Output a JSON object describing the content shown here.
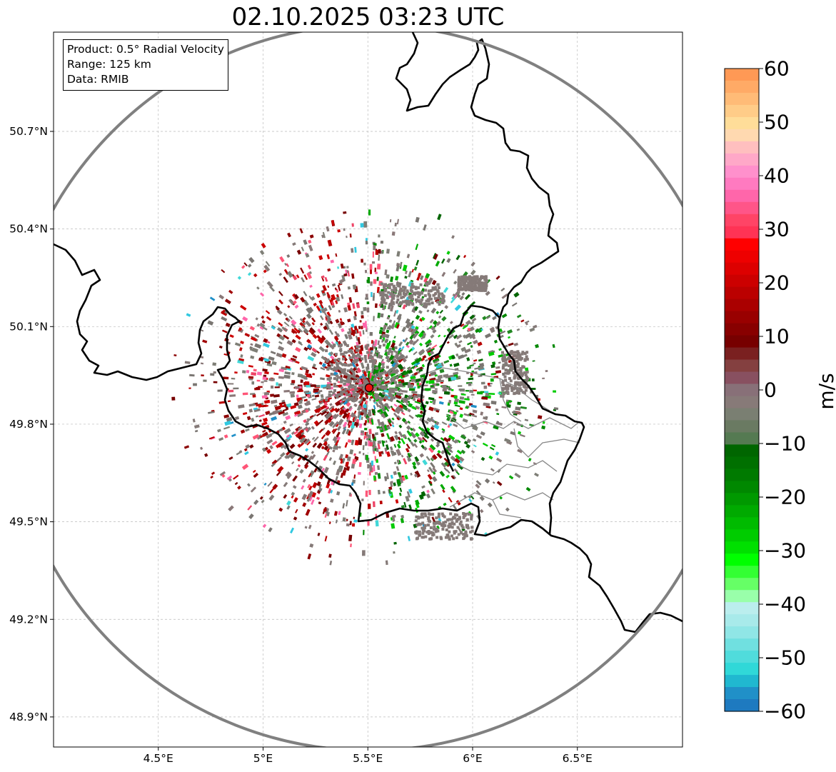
{
  "title": "02.10.2025 03:23 UTC",
  "infobox": {
    "product": "Product: 0.5° Radial Velocity",
    "range": "Range: 125 km",
    "data": "Data: RMIB"
  },
  "axes": {
    "lat_labels": [
      "50.7°N",
      "50.4°N",
      "50.1°N",
      "49.8°N",
      "49.5°N",
      "49.2°N",
      "48.9°N"
    ],
    "lat_values": [
      50.7,
      50.4,
      50.1,
      49.8,
      49.5,
      49.2,
      48.9
    ],
    "lon_labels": [
      "4.5°E",
      "5°E",
      "5.5°E",
      "6°E",
      "6.5°E"
    ],
    "lon_values": [
      4.5,
      5.0,
      5.5,
      6.0,
      6.5
    ],
    "lon_range": [
      4.0,
      7.0
    ],
    "lat_range": [
      48.8,
      50.98
    ]
  },
  "radar_site": {
    "lon": 5.505,
    "lat": 49.914
  },
  "colorbar": {
    "label": "m/s",
    "ticks": [
      "60",
      "50",
      "40",
      "30",
      "20",
      "10",
      "0",
      "−10",
      "−20",
      "−30",
      "−40",
      "−50",
      "−60"
    ],
    "tick_values": [
      60,
      50,
      40,
      30,
      20,
      10,
      0,
      -10,
      -20,
      -30,
      -40,
      -50,
      -60
    ],
    "range": [
      -60,
      60
    ],
    "colors": [
      "#ff9955",
      "#ffaa66",
      "#ffbb77",
      "#ffcc88",
      "#ffdd99",
      "#ffd9b0",
      "#ffbfbf",
      "#ffa8c8",
      "#ff90cc",
      "#ff7ac0",
      "#ff66aa",
      "#ff5588",
      "#ff4466",
      "#ff3355",
      "#ff0000",
      "#ee0000",
      "#dd0000",
      "#cc0000",
      "#bb0000",
      "#aa0000",
      "#990000",
      "#880000",
      "#770000",
      "#7a2020",
      "#844040",
      "#885060",
      "#887078",
      "#877a78",
      "#7a7f72",
      "#6a7a62",
      "#557a52",
      "#006600",
      "#007000",
      "#007a00",
      "#008800",
      "#009900",
      "#00aa00",
      "#00bb00",
      "#00cc00",
      "#00e000",
      "#00ff00",
      "#33ff33",
      "#66ff66",
      "#99ffaa",
      "#bbeeee",
      "#a8eaea",
      "#90e6e6",
      "#70e0e0",
      "#50dcdc",
      "#30d8d8",
      "#20b8d0",
      "#2090c8",
      "#1e7ac0"
    ]
  }
}
